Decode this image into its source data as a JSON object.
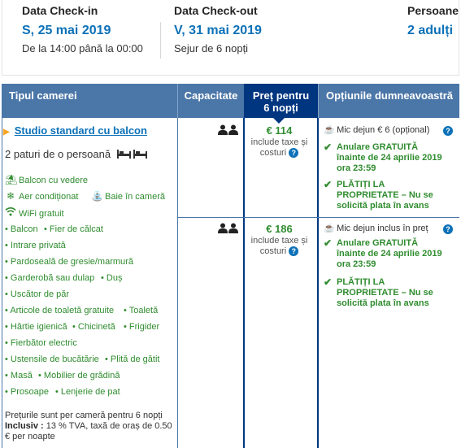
{
  "summary": {
    "checkin": {
      "label": "Data Check-in",
      "date": "S, 25 mai 2019",
      "time": "De la 14:00 până la 00:00"
    },
    "checkout": {
      "label": "Data Check-out",
      "date": "V, 31 mai 2019",
      "stay": "Sejur de 6 nopți"
    },
    "guests": {
      "label": "Persoane",
      "value": "2 adulți"
    }
  },
  "table": {
    "headers": {
      "room_type": "Tipul camerei",
      "capacity": "Capacitate",
      "price_line1": "Preț pentru",
      "price_line2": "6 nopți",
      "options": "Opțiunile dumneavoastră"
    }
  },
  "room": {
    "name": "Studio standard cu balcon",
    "beds": "2 paturi de o persoană",
    "amenities": {
      "balcony_view": "Balcon cu vedere",
      "ac": "Aer condiționat",
      "bath": "Baie în cameră",
      "wifi": "WiFi gratuit"
    },
    "facilities": [
      "Balcon",
      "Fier de călcat",
      "Intrare privată",
      "Pardoseală de gresie/marmură",
      "Garderobă sau dulap",
      "Duș",
      "Uscător de păr",
      "Articole de toaletă gratuite",
      "Toaletă",
      "Hârtie igienică",
      "Chicinetă",
      "Frigider",
      "Fierbător electric",
      "Ustensile de bucătărie",
      "Plită de gătit",
      "Masă",
      "Mobilier de grădină",
      "Prosoape",
      "Lenjerie de pat"
    ],
    "note_line1": "Prețurile sunt per cameră pentru 6 nopți",
    "note_inclusive_label": "Inclusiv :",
    "note_inclusive_text": " 13 % TVA, taxă de oraș de 0.50",
    "note_line3": "€ per noapte"
  },
  "offers": [
    {
      "price": "€ 114",
      "tax_line1": "include taxe și",
      "tax_line2": "costuri",
      "meal": "Mic dejun € 6 (opțional)",
      "cancel": "Anulare GRATUITĂ înainte de 24 aprilie 2019 ora 23:59",
      "pay": "PLĂTIȚI LA PROPRIETATE – Nu se solicită plata în avans"
    },
    {
      "price": "€ 186",
      "tax_line1": "include taxe și",
      "tax_line2": "costuri",
      "meal": "Mic dejun inclus în preț",
      "cancel": "Anulare GRATUITĂ înainte de 24 aprilie 2019 ora 23:59",
      "pay": "PLĂTIȚI LA PROPRIETATE – Nu se solicită plata în avans"
    }
  ],
  "colors": {
    "header_bg": "#4b76a8",
    "price_header_bg": "#003580",
    "link": "#0c71b8",
    "green": "#2f8c2f",
    "accent": "#f5a623"
  }
}
